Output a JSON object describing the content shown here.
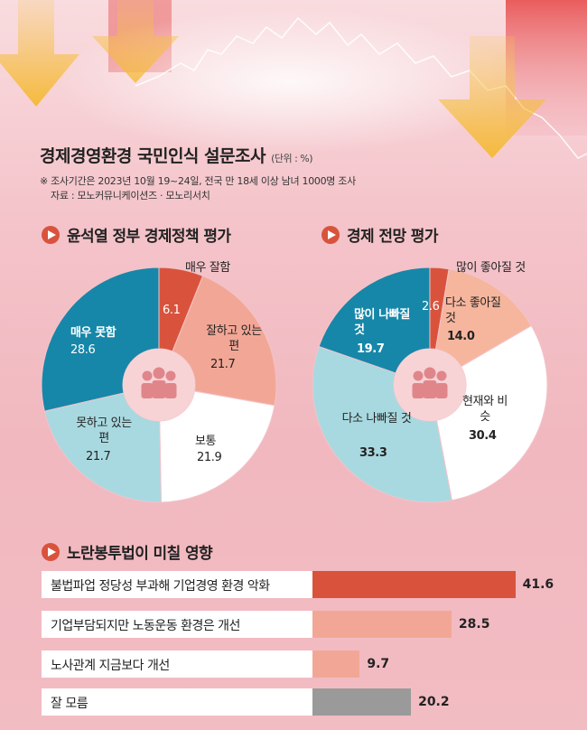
{
  "header": {
    "title": "경제경영환경 국민인식 설문조사",
    "unit": "(단위 : %)",
    "note1": "※ 조사기간은 2023년 10월 19~24일, 전국 만 18세 이상 남녀 1000명 조사",
    "note2": "자료 : 모노커뮤니케이션즈 · 모노리서치"
  },
  "sections": {
    "policy": "윤석열 정부 경제정책 평가",
    "outlook": "경제 전망 평가",
    "law": "노란봉투법이 미칠 영향"
  },
  "colors": {
    "red": "#d9533c",
    "salmon": "#f2a796",
    "white": "#ffffff",
    "lightblue": "#a9d9e0",
    "blue": "#1687a9",
    "gray": "#9a9a9a",
    "peach": "#f6b69e"
  },
  "chart_data": [
    {
      "type": "pie",
      "title": "윤석열 정부 경제정책 평가",
      "slices": [
        {
          "label": "매우 잘함",
          "value": 6.1,
          "color": "#d9533c"
        },
        {
          "label": "잘하고 있는 편",
          "value": 21.7,
          "color": "#f2a796"
        },
        {
          "label": "보통",
          "value": 21.9,
          "color": "#ffffff"
        },
        {
          "label": "못하고 있는 편",
          "value": 21.7,
          "color": "#a9d9e0"
        },
        {
          "label": "매우 못함",
          "value": 28.6,
          "color": "#1687a9"
        }
      ],
      "value_labels": [
        "6.1",
        "21.7",
        "21.9",
        "21.7",
        "28.6"
      ]
    },
    {
      "type": "pie",
      "title": "경제 전망 평가",
      "slices": [
        {
          "label": "많이 좋아질 것",
          "value": 2.6,
          "color": "#d9533c"
        },
        {
          "label": "다소 좋아질 것",
          "value": 14.0,
          "color": "#f6b69e"
        },
        {
          "label": "현재와 비슷",
          "value": 30.4,
          "color": "#ffffff"
        },
        {
          "label": "다소 나빠질 것",
          "value": 33.3,
          "color": "#a9d9e0"
        },
        {
          "label": "많이 나빠질 것",
          "value": 19.7,
          "color": "#1687a9"
        }
      ],
      "value_labels": [
        "2.6",
        "14.0",
        "30.4",
        "33.3",
        "19.7"
      ]
    },
    {
      "type": "bar",
      "title": "노란봉투법이 미칠 영향",
      "categories": [
        "불법파업 정당성 부과해 기업경영 환경 악화",
        "기업부담되지만 노동운동 환경은 개선",
        "노사관계 지금보다 개선",
        "잘 모름"
      ],
      "values": [
        41.6,
        28.5,
        9.7,
        20.2
      ],
      "value_labels": [
        "41.6",
        "28.5",
        "9.7",
        "20.2"
      ],
      "colors": [
        "#d9533c",
        "#f2a796",
        "#f2a796",
        "#9a9a9a"
      ]
    }
  ]
}
